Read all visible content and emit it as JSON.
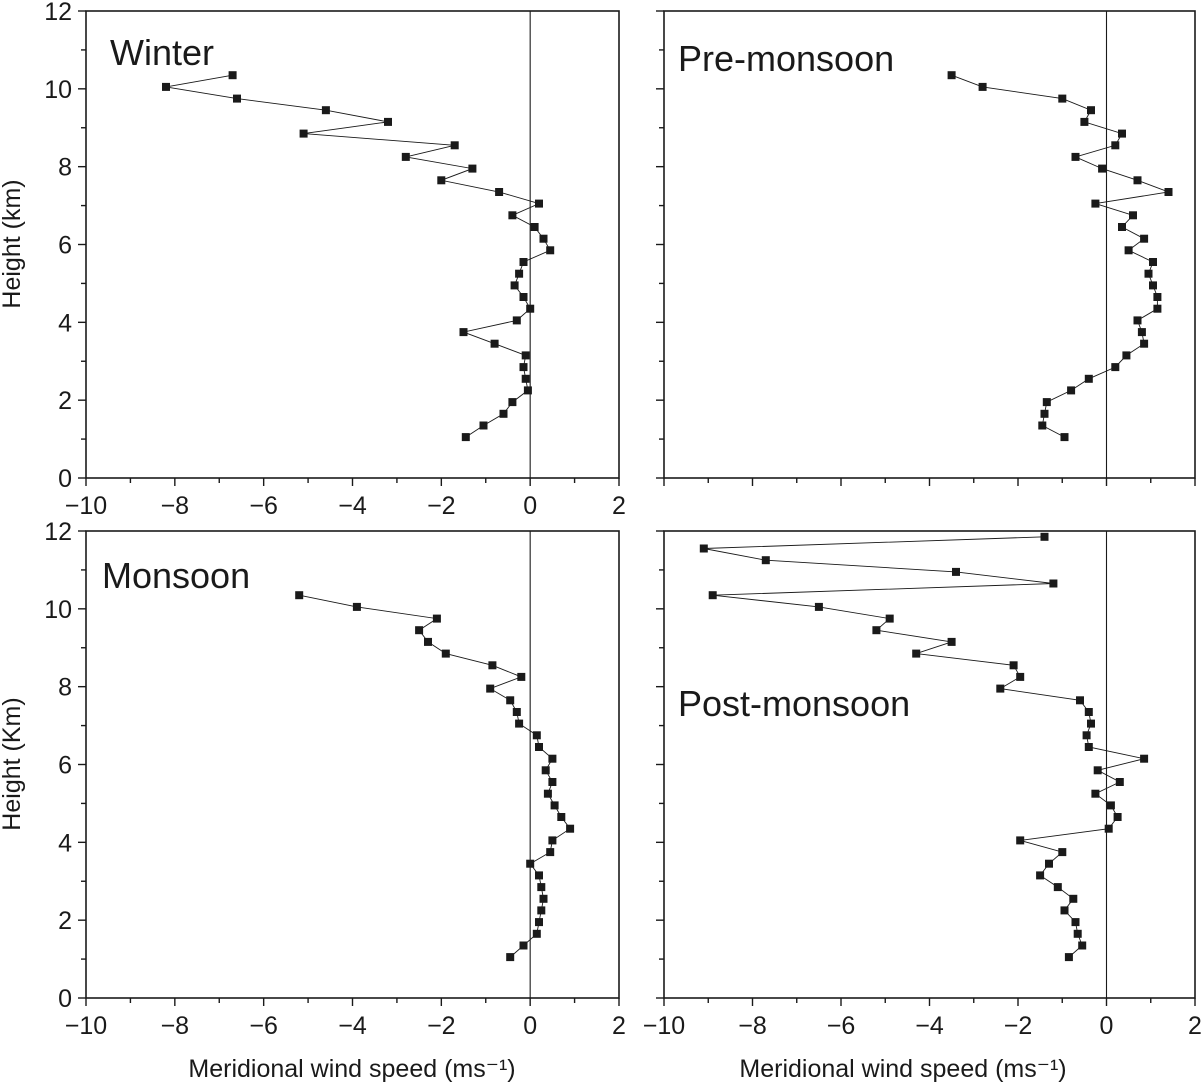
{
  "chart_data": [
    {
      "type": "line",
      "title": "Winter",
      "xlabel": "",
      "ylabel": "Height (km)",
      "xlim": [
        -10,
        2
      ],
      "ylim": [
        0,
        12
      ],
      "x_ticks": [
        "−10",
        "−8",
        "−6",
        "−4",
        "−2",
        "0",
        "2"
      ],
      "y_ticks": [
        "0",
        "2",
        "4",
        "6",
        "8",
        "10",
        "12"
      ],
      "series": [
        {
          "points": [
            [
              -6.7,
              10.35
            ],
            [
              -8.2,
              10.05
            ],
            [
              -6.6,
              9.75
            ],
            [
              -4.6,
              9.45
            ],
            [
              -3.2,
              9.15
            ],
            [
              -5.1,
              8.85
            ],
            [
              -1.7,
              8.55
            ],
            [
              -2.8,
              8.25
            ],
            [
              -1.3,
              7.95
            ],
            [
              -2.0,
              7.65
            ],
            [
              -0.7,
              7.35
            ],
            [
              0.2,
              7.05
            ],
            [
              -0.4,
              6.75
            ],
            [
              0.1,
              6.45
            ],
            [
              0.3,
              6.15
            ],
            [
              0.45,
              5.85
            ],
            [
              -0.15,
              5.55
            ],
            [
              -0.25,
              5.25
            ],
            [
              -0.35,
              4.95
            ],
            [
              -0.15,
              4.65
            ],
            [
              0.0,
              4.35
            ],
            [
              -0.3,
              4.05
            ],
            [
              -1.5,
              3.75
            ],
            [
              -0.8,
              3.45
            ],
            [
              -0.1,
              3.15
            ],
            [
              -0.15,
              2.85
            ],
            [
              -0.1,
              2.55
            ],
            [
              -0.05,
              2.25
            ],
            [
              -0.4,
              1.95
            ],
            [
              -0.6,
              1.65
            ],
            [
              -1.05,
              1.35
            ],
            [
              -1.45,
              1.05
            ]
          ]
        }
      ]
    },
    {
      "type": "line",
      "title": "Pre-monsoon",
      "xlabel": "",
      "ylabel": "",
      "xlim": [
        -10,
        2
      ],
      "ylim": [
        0,
        12
      ],
      "x_ticks": [],
      "y_ticks": [],
      "series": [
        {
          "points": [
            [
              -3.5,
              10.35
            ],
            [
              -2.8,
              10.05
            ],
            [
              -1.0,
              9.75
            ],
            [
              -0.35,
              9.45
            ],
            [
              -0.5,
              9.15
            ],
            [
              0.35,
              8.85
            ],
            [
              0.2,
              8.55
            ],
            [
              -0.7,
              8.25
            ],
            [
              -0.1,
              7.95
            ],
            [
              0.7,
              7.65
            ],
            [
              1.4,
              7.35
            ],
            [
              -0.25,
              7.05
            ],
            [
              0.6,
              6.75
            ],
            [
              0.35,
              6.45
            ],
            [
              0.85,
              6.15
            ],
            [
              0.5,
              5.85
            ],
            [
              1.05,
              5.55
            ],
            [
              0.95,
              5.25
            ],
            [
              1.05,
              4.95
            ],
            [
              1.15,
              4.65
            ],
            [
              1.15,
              4.35
            ],
            [
              0.7,
              4.05
            ],
            [
              0.8,
              3.75
            ],
            [
              0.85,
              3.45
            ],
            [
              0.45,
              3.15
            ],
            [
              0.2,
              2.85
            ],
            [
              -0.4,
              2.55
            ],
            [
              -0.8,
              2.25
            ],
            [
              -1.35,
              1.95
            ],
            [
              -1.4,
              1.65
            ],
            [
              -1.45,
              1.35
            ],
            [
              -0.95,
              1.05
            ]
          ]
        }
      ]
    },
    {
      "type": "line",
      "title": "Monsoon",
      "xlabel": "Meridional wind speed (ms⁻¹)",
      "ylabel": "Height (Km)",
      "xlim": [
        -10,
        2
      ],
      "ylim": [
        0,
        12
      ],
      "x_ticks": [
        "−10",
        "−8",
        "−6",
        "−4",
        "−2",
        "0",
        "2"
      ],
      "y_ticks": [
        "0",
        "2",
        "4",
        "6",
        "8",
        "10",
        "12"
      ],
      "series": [
        {
          "points": [
            [
              -5.2,
              10.35
            ],
            [
              -3.9,
              10.05
            ],
            [
              -2.1,
              9.75
            ],
            [
              -2.5,
              9.45
            ],
            [
              -2.3,
              9.15
            ],
            [
              -1.9,
              8.85
            ],
            [
              -0.85,
              8.55
            ],
            [
              -0.2,
              8.25
            ],
            [
              -0.9,
              7.95
            ],
            [
              -0.45,
              7.65
            ],
            [
              -0.3,
              7.35
            ],
            [
              -0.25,
              7.05
            ],
            [
              0.15,
              6.75
            ],
            [
              0.2,
              6.45
            ],
            [
              0.5,
              6.15
            ],
            [
              0.35,
              5.85
            ],
            [
              0.5,
              5.55
            ],
            [
              0.4,
              5.25
            ],
            [
              0.55,
              4.95
            ],
            [
              0.7,
              4.65
            ],
            [
              0.9,
              4.35
            ],
            [
              0.5,
              4.05
            ],
            [
              0.45,
              3.75
            ],
            [
              0.0,
              3.45
            ],
            [
              0.2,
              3.15
            ],
            [
              0.25,
              2.85
            ],
            [
              0.3,
              2.55
            ],
            [
              0.25,
              2.25
            ],
            [
              0.2,
              1.95
            ],
            [
              0.15,
              1.65
            ],
            [
              -0.15,
              1.35
            ],
            [
              -0.45,
              1.05
            ]
          ]
        }
      ]
    },
    {
      "type": "line",
      "title": "Post-monsoon",
      "xlabel": "Meridional wind speed (ms⁻¹)",
      "ylabel": "",
      "xlim": [
        -10,
        2
      ],
      "ylim": [
        0,
        12
      ],
      "x_ticks": [
        "−10",
        "−8",
        "−6",
        "−4",
        "−2",
        "0",
        "2"
      ],
      "y_ticks": [],
      "series": [
        {
          "points": [
            [
              -1.4,
              11.85
            ],
            [
              -9.1,
              11.55
            ],
            [
              -7.7,
              11.25
            ],
            [
              -3.4,
              10.95
            ],
            [
              -1.2,
              10.65
            ],
            [
              -8.9,
              10.35
            ],
            [
              -6.5,
              10.05
            ],
            [
              -4.9,
              9.75
            ],
            [
              -5.2,
              9.45
            ],
            [
              -3.5,
              9.15
            ],
            [
              -4.3,
              8.85
            ],
            [
              -2.1,
              8.55
            ],
            [
              -1.95,
              8.25
            ],
            [
              -2.4,
              7.95
            ],
            [
              -0.6,
              7.65
            ],
            [
              -0.4,
              7.35
            ],
            [
              -0.35,
              7.05
            ],
            [
              -0.45,
              6.75
            ],
            [
              -0.4,
              6.45
            ],
            [
              0.85,
              6.15
            ],
            [
              -0.2,
              5.85
            ],
            [
              0.3,
              5.55
            ],
            [
              -0.25,
              5.25
            ],
            [
              0.1,
              4.95
            ],
            [
              0.25,
              4.65
            ],
            [
              0.05,
              4.35
            ],
            [
              -1.95,
              4.05
            ],
            [
              -1.0,
              3.75
            ],
            [
              -1.3,
              3.45
            ],
            [
              -1.5,
              3.15
            ],
            [
              -1.1,
              2.85
            ],
            [
              -0.75,
              2.55
            ],
            [
              -0.95,
              2.25
            ],
            [
              -0.7,
              1.95
            ],
            [
              -0.65,
              1.65
            ],
            [
              -0.55,
              1.35
            ],
            [
              -0.85,
              1.05
            ]
          ]
        }
      ]
    }
  ]
}
